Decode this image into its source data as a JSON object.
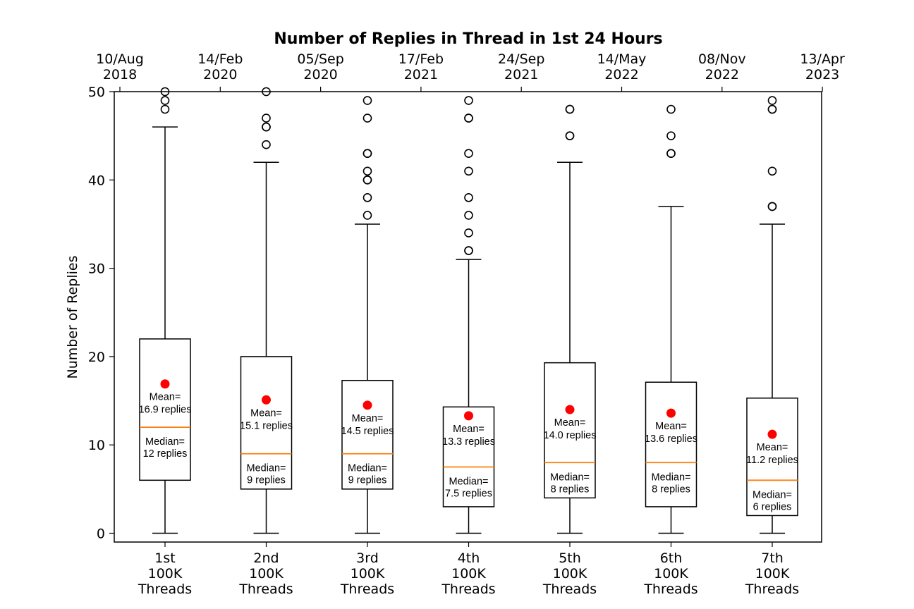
{
  "chart_data": {
    "type": "box",
    "title": "Number of Replies in Thread in 1st 24 Hours",
    "ylabel": "Number of Replies",
    "xlabel": "",
    "ylim": [
      -1,
      50
    ],
    "yticks": [
      0,
      10,
      20,
      30,
      40,
      50
    ],
    "grid": false,
    "top_axis_ticks": [
      [
        "10/Aug",
        "2018"
      ],
      [
        "14/Feb",
        "2020"
      ],
      [
        "05/Sep",
        "2020"
      ],
      [
        "17/Feb",
        "2021"
      ],
      [
        "24/Sep",
        "2021"
      ],
      [
        "14/May",
        "2022"
      ],
      [
        "08/Nov",
        "2022"
      ],
      [
        "13/Apr",
        "2023"
      ]
    ],
    "categories": [
      [
        "1st",
        "100K",
        "Threads"
      ],
      [
        "2nd",
        "100K",
        "Threads"
      ],
      [
        "3rd",
        "100K",
        "Threads"
      ],
      [
        "4th",
        "100K",
        "Threads"
      ],
      [
        "5th",
        "100K",
        "Threads"
      ],
      [
        "6th",
        "100K",
        "Threads"
      ],
      [
        "7th",
        "100K",
        "Threads"
      ]
    ],
    "boxes": [
      {
        "whisker_low": 0,
        "q1": 6,
        "median": 12,
        "q3": 22,
        "whisker_high": 46,
        "mean": 16.9,
        "outliers": [
          48,
          49,
          50
        ],
        "mean_label": [
          "Mean=",
          "16.9 replies"
        ],
        "median_label": [
          "Median=",
          "12 replies"
        ]
      },
      {
        "whisker_low": 0,
        "q1": 5,
        "median": 9,
        "q3": 20,
        "whisker_high": 42,
        "mean": 15.1,
        "outliers": [
          44,
          46,
          46,
          47,
          50
        ],
        "mean_label": [
          "Mean=",
          "15.1 replies"
        ],
        "median_label": [
          "Median=",
          "9 replies"
        ]
      },
      {
        "whisker_low": 0,
        "q1": 5,
        "median": 9,
        "q3": 17.3,
        "whisker_high": 35,
        "mean": 14.5,
        "outliers": [
          36,
          38,
          40,
          40,
          41,
          43,
          43,
          47,
          49
        ],
        "mean_label": [
          "Mean=",
          "14.5 replies"
        ],
        "median_label": [
          "Median=",
          "9 replies"
        ]
      },
      {
        "whisker_low": 0,
        "q1": 3,
        "median": 7.5,
        "q3": 14.3,
        "whisker_high": 31,
        "mean": 13.3,
        "outliers": [
          32,
          32,
          34,
          36,
          38,
          41,
          43,
          47,
          47,
          49
        ],
        "mean_label": [
          "Mean=",
          "13.3 replies"
        ],
        "median_label": [
          "Median=",
          "7.5 replies"
        ]
      },
      {
        "whisker_low": 0,
        "q1": 4,
        "median": 8,
        "q3": 19.3,
        "whisker_high": 42,
        "mean": 14.0,
        "outliers": [
          45,
          45,
          48,
          48
        ],
        "mean_label": [
          "Mean=",
          "14.0 replies"
        ],
        "median_label": [
          "Median=",
          "8 replies"
        ]
      },
      {
        "whisker_low": 0,
        "q1": 3,
        "median": 8,
        "q3": 17.1,
        "whisker_high": 37,
        "mean": 13.6,
        "outliers": [
          43,
          43,
          45,
          48
        ],
        "mean_label": [
          "Mean=",
          "13.6 replies"
        ],
        "median_label": [
          "Median=",
          "8 replies"
        ]
      },
      {
        "whisker_low": 0,
        "q1": 2,
        "median": 6,
        "q3": 15.3,
        "whisker_high": 35,
        "mean": 11.2,
        "outliers": [
          37,
          37,
          41,
          48,
          48,
          49
        ],
        "mean_label": [
          "Mean=",
          "11.2 replies"
        ],
        "median_label": [
          "Median=",
          "6 replies"
        ]
      }
    ],
    "colors": {
      "box": "#000000",
      "median": "#ff7f0e",
      "mean": "#ff0000",
      "outlier": "#000000"
    }
  }
}
